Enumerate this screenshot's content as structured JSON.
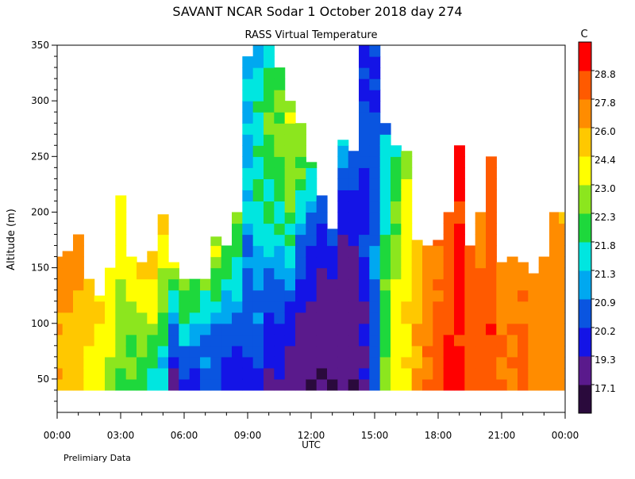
{
  "chart_data": {
    "type": "heatmap",
    "title": "SAVANT   NCAR Sodar    1 October 2018   day 274",
    "subtitle": "RASS Virtual Temperature",
    "xlabel": "UTC",
    "ylabel": "Altitude (m)",
    "footnote": "Prelimiary Data",
    "colorbar": {
      "unit": "C",
      "labels": [
        "17.1",
        "19.3",
        "20.2",
        "20.9",
        "21.3",
        "21.8",
        "22.3",
        "23.0",
        "24.4",
        "26.0",
        "27.8",
        "28.8"
      ],
      "bins": [
        {
          "range": [
            16.5,
            17.1
          ],
          "color": "#2a0a3c"
        },
        {
          "range": [
            17.1,
            19.3
          ],
          "color": "#5a1a8c"
        },
        {
          "range": [
            19.3,
            20.2
          ],
          "color": "#1414e6"
        },
        {
          "range": [
            20.2,
            20.9
          ],
          "color": "#0a55e0"
        },
        {
          "range": [
            20.9,
            21.3
          ],
          "color": "#00a8f0"
        },
        {
          "range": [
            21.3,
            21.8
          ],
          "color": "#00e6e0"
        },
        {
          "range": [
            21.8,
            22.3
          ],
          "color": "#1ed83c"
        },
        {
          "range": [
            22.3,
            23.0
          ],
          "color": "#8ce61e"
        },
        {
          "range": [
            23.0,
            24.4
          ],
          "color": "#ffff00"
        },
        {
          "range": [
            24.4,
            26.0
          ],
          "color": "#ffc800"
        },
        {
          "range": [
            26.0,
            27.8
          ],
          "color": "#ff8c00"
        },
        {
          "range": [
            27.8,
            28.8
          ],
          "color": "#ff5a00"
        },
        {
          "range": [
            28.8,
            30.0
          ],
          "color": "#ff0000"
        }
      ]
    },
    "x_range_hours": [
      0,
      24
    ],
    "xticks": [
      "00:00",
      "03:00",
      "06:00",
      "09:00",
      "12:00",
      "15:00",
      "18:00",
      "21:00",
      "00:00"
    ],
    "y_range_m": [
      20,
      350
    ],
    "yticks": [
      50,
      100,
      150,
      200,
      250,
      300,
      350
    ],
    "data_bottom_altitude_m": 40,
    "time_profiles": [
      {
        "h": 0.0,
        "top": 160,
        "temps": [
          25.8,
          25.9,
          26.2,
          26.5
        ]
      },
      {
        "h": 0.5,
        "top": 165,
        "temps": [
          25.3,
          25.6,
          26.3,
          26.8
        ]
      },
      {
        "h": 1.0,
        "top": 180,
        "temps": [
          24.8,
          25.2,
          26.0,
          27.0
        ]
      },
      {
        "h": 1.5,
        "top": 140,
        "temps": [
          23.6,
          24.2,
          24.6,
          25.2
        ]
      },
      {
        "h": 2.0,
        "top": 125,
        "temps": [
          23.4,
          23.6,
          24.3,
          24.8
        ]
      },
      {
        "h": 2.5,
        "top": 150,
        "temps": [
          22.6,
          23.1,
          23.7,
          24.8
        ]
      },
      {
        "h": 3.0,
        "top": 215,
        "temps": [
          22.1,
          22.8,
          23.4,
          24.6
        ]
      },
      {
        "h": 3.5,
        "top": 160,
        "temps": [
          21.9,
          22.5,
          23.2,
          24.8
        ]
      },
      {
        "h": 4.0,
        "top": 155,
        "temps": [
          22.0,
          22.7,
          23.4,
          25.1
        ]
      },
      {
        "h": 4.5,
        "top": 165,
        "temps": [
          21.6,
          22.6,
          23.6,
          25.6
        ]
      },
      {
        "h": 5.0,
        "top": 198,
        "temps": [
          21.3,
          22.0,
          23.2,
          25.3
        ]
      },
      {
        "h": 5.5,
        "top": 155,
        "temps": [
          19.2,
          20.3,
          21.5,
          23.8
        ]
      },
      {
        "h": 6.0,
        "top": 140,
        "temps": [
          20.0,
          21.0,
          22.0,
          23.0
        ]
      },
      {
        "h": 6.5,
        "top": 140,
        "temps": [
          19.8,
          20.6,
          22.0,
          22.8
        ]
      },
      {
        "h": 7.0,
        "top": 140,
        "temps": [
          20.5,
          20.8,
          21.5,
          22.6
        ]
      },
      {
        "h": 7.5,
        "top": 178,
        "temps": [
          20.3,
          20.9,
          22.1,
          23.2
        ]
      },
      {
        "h": 8.0,
        "top": 170,
        "temps": [
          19.6,
          20.6,
          21.3,
          22.3
        ]
      },
      {
        "h": 8.5,
        "top": 200,
        "temps": [
          19.9,
          20.7,
          21.7,
          22.8
        ]
      },
      {
        "h": 9.0,
        "top": 340,
        "temps": [
          19.8,
          20.9,
          21.4,
          21.2
        ]
      },
      {
        "h": 9.5,
        "top": 350,
        "temps": [
          19.9,
          21.3,
          22.0,
          21.0
        ]
      },
      {
        "h": 10.0,
        "top": 350,
        "temps": [
          19.0,
          21.1,
          22.2,
          21.8
        ]
      },
      {
        "h": 10.5,
        "top": 330,
        "temps": [
          19.2,
          20.9,
          22.4,
          22.1
        ]
      },
      {
        "h": 11.0,
        "top": 300,
        "temps": [
          18.6,
          20.7,
          22.6,
          23.0
        ]
      },
      {
        "h": 11.5,
        "top": 280,
        "temps": [
          18.2,
          19.6,
          21.9,
          22.5
        ]
      },
      {
        "h": 12.0,
        "top": 245,
        "temps": [
          17.0,
          19.1,
          20.5,
          21.8
        ]
      },
      {
        "h": 12.5,
        "top": 215,
        "temps": [
          17.1,
          18.3,
          19.5,
          21.0
        ]
      },
      {
        "h": 13.0,
        "top": 185,
        "temps": [
          17.2,
          18.0,
          19.2,
          20.8
        ]
      },
      {
        "h": 13.5,
        "top": 265,
        "temps": [
          17.1,
          18.1,
          19.6,
          21.7
        ]
      },
      {
        "h": 14.0,
        "top": 255,
        "temps": [
          17.0,
          18.6,
          19.7,
          21.0
        ]
      },
      {
        "h": 14.5,
        "top": 350,
        "temps": [
          18.9,
          19.9,
          20.4,
          20.2
        ]
      },
      {
        "h": 15.0,
        "top": 350,
        "temps": [
          20.5,
          20.8,
          20.6,
          20.0
        ]
      },
      {
        "h": 15.5,
        "top": 280,
        "temps": [
          22.4,
          22.1,
          21.7,
          21.0
        ]
      },
      {
        "h": 16.0,
        "top": 260,
        "temps": [
          23.6,
          23.2,
          22.4,
          21.6
        ]
      },
      {
        "h": 16.5,
        "top": 255,
        "temps": [
          24.6,
          24.2,
          23.6,
          22.4
        ]
      },
      {
        "h": 17.0,
        "top": 175,
        "temps": [
          26.2,
          26.0,
          25.3,
          24.6
        ]
      },
      {
        "h": 17.5,
        "top": 170,
        "temps": [
          28.0,
          27.4,
          27.0,
          26.6
        ]
      },
      {
        "h": 18.0,
        "top": 175,
        "temps": [
          28.6,
          28.4,
          27.9,
          27.6
        ]
      },
      {
        "h": 18.5,
        "top": 200,
        "temps": [
          28.9,
          28.7,
          28.4,
          28.1
        ]
      },
      {
        "h": 19.0,
        "top": 260,
        "temps": [
          29.1,
          29.0,
          29.0,
          29.0
        ]
      },
      {
        "h": 19.5,
        "top": 170,
        "temps": [
          28.3,
          28.2,
          27.9,
          27.7
        ]
      },
      {
        "h": 20.0,
        "top": 200,
        "temps": [
          28.4,
          28.0,
          27.7,
          27.4
        ]
      },
      {
        "h": 20.5,
        "top": 250,
        "temps": [
          28.7,
          28.5,
          28.2,
          27.9
        ]
      },
      {
        "h": 21.0,
        "top": 155,
        "temps": [
          28.0,
          27.7,
          27.4,
          27.2
        ]
      },
      {
        "h": 21.5,
        "top": 160,
        "temps": [
          27.8,
          27.6,
          27.5,
          27.3
        ]
      },
      {
        "h": 22.0,
        "top": 155,
        "temps": [
          28.3,
          28.0,
          27.9,
          27.4
        ]
      },
      {
        "h": 22.5,
        "top": 145,
        "temps": [
          27.6,
          27.4,
          27.2,
          27.0
        ]
      },
      {
        "h": 23.0,
        "top": 160,
        "temps": [
          27.0,
          27.2,
          26.8,
          26.4
        ]
      },
      {
        "h": 23.5,
        "top": 200,
        "temps": [
          27.4,
          27.0,
          26.6,
          26.3
        ]
      },
      {
        "h": 23.9,
        "top": 200,
        "temps": [
          26.8,
          26.5,
          26.3,
          26.1
        ]
      }
    ]
  }
}
